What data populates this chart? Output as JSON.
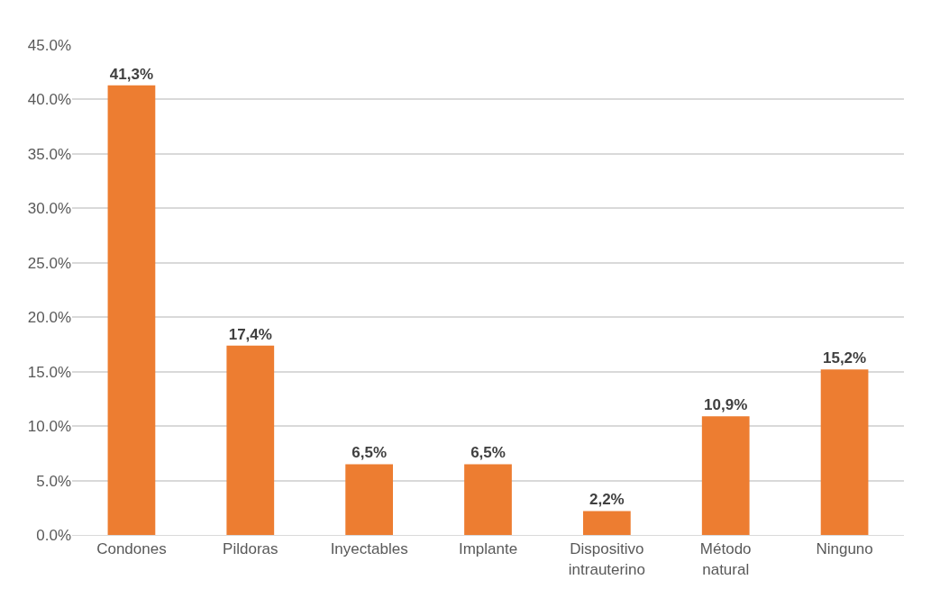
{
  "chart_data": {
    "type": "bar",
    "categories": [
      "Condones",
      "Pildoras",
      "Inyectables",
      "Implante",
      "Dispositivo\nintrauterino",
      "Método\nnatural",
      "Ninguno"
    ],
    "values": [
      41.3,
      17.4,
      6.5,
      6.5,
      2.2,
      10.9,
      15.2
    ],
    "value_labels": [
      "41,3%",
      "17,4%",
      "6,5%",
      "6,5%",
      "2,2%",
      "10,9%",
      "15,2%"
    ],
    "color": "#ed7d31",
    "ylim": [
      0,
      45
    ],
    "yticks": [
      {
        "value": 0,
        "label": "0.0%"
      },
      {
        "value": 5,
        "label": "5.0%"
      },
      {
        "value": 10,
        "label": "10.0%"
      },
      {
        "value": 15,
        "label": "15.0%"
      },
      {
        "value": 20,
        "label": "20.0%"
      },
      {
        "value": 25,
        "label": "25.0%"
      },
      {
        "value": 30,
        "label": "30.0%"
      },
      {
        "value": 35,
        "label": "35.0%"
      },
      {
        "value": 40,
        "label": "40.0%"
      },
      {
        "value": 45,
        "label": "45.0%"
      }
    ],
    "grid": "y"
  }
}
